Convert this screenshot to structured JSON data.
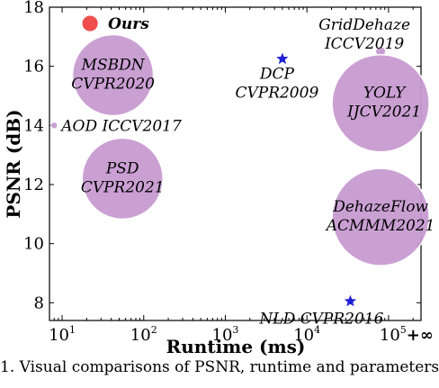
{
  "chart_data": {
    "type": "scatter",
    "xlabel": "Runtime (ms)",
    "ylabel": "PSNR (dB)",
    "xscale": "log",
    "xlim": [
      7,
      250000
    ],
    "ylim": [
      7.4,
      18
    ],
    "grid": false,
    "x_ticks": [
      {
        "value": 10,
        "base": "10",
        "exp": "1"
      },
      {
        "value": 100,
        "base": "10",
        "exp": "2"
      },
      {
        "value": 1000,
        "base": "10",
        "exp": "3"
      },
      {
        "value": 10000,
        "base": "10",
        "exp": "4"
      },
      {
        "value": 100000,
        "base": "10",
        "exp": "5",
        "suffix": "+∞"
      }
    ],
    "y_ticks": [
      8,
      10,
      12,
      14,
      16,
      18
    ],
    "points": [
      {
        "label": "Ours",
        "x": 22,
        "y": 17.45,
        "marker": "circle",
        "color": "#ef4444",
        "size": 1
      },
      {
        "label": "MSBDN CVPR2020",
        "x": 42,
        "y": 15.7,
        "marker": "circle",
        "color": "#c79bd1",
        "size": 5
      },
      {
        "label": "PSD CVPR2021",
        "x": 55,
        "y": 12.2,
        "marker": "circle",
        "color": "#c79bd1",
        "size": 5
      },
      {
        "label": "AOD ICCV2017",
        "x": 8,
        "y": 14.0,
        "marker": "circle",
        "color": "#c79bd1",
        "size": 0.4
      },
      {
        "label": "DCP CVPR2009",
        "x": 5000,
        "y": 16.25,
        "marker": "star",
        "color": "#1f1fd6"
      },
      {
        "label": "GridDehaze ICCV2019",
        "x": 80000,
        "y": 16.5,
        "marker": "circle",
        "color": "#c79bd1",
        "size": 0.6
      },
      {
        "label": "YOLY IJCV2021",
        "x": 80000,
        "y": 14.75,
        "marker": "circle",
        "color": "#c79bd1",
        "size": 6
      },
      {
        "label": "DehazeFlow ACMMM2021",
        "x": 80000,
        "y": 10.9,
        "marker": "circle",
        "color": "#c79bd1",
        "size": 6
      },
      {
        "label": "NLD CVPR2016",
        "x": 34000,
        "y": 8.05,
        "marker": "star",
        "color": "#1f1fd6"
      }
    ],
    "annotations": [
      {
        "lines": [
          "Ours"
        ],
        "bold": true
      },
      {
        "lines": [
          "MSBDN",
          "CVPR2020"
        ]
      },
      {
        "lines": [
          "PSD",
          "CVPR2021"
        ]
      },
      {
        "lines": [
          "AOD ICCV2017"
        ]
      },
      {
        "lines": [
          "DCP",
          "CVPR2009"
        ]
      },
      {
        "lines": [
          "GridDehaze",
          "ICCV2019"
        ]
      },
      {
        "lines": [
          "YOLY",
          "IJCV2021"
        ]
      },
      {
        "lines": [
          "DehazeFlow",
          "ACMMM2021"
        ]
      },
      {
        "lines": [
          "NLD CVPR2016"
        ]
      }
    ]
  },
  "caption": {
    "text": "1. Visual comparisons of PSNR, runtime and parameters"
  }
}
